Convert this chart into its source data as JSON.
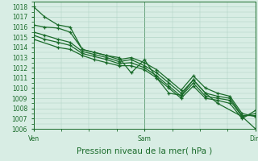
{
  "xlabel": "Pression niveau de la mer( hPa )",
  "bg_color": "#d8ede4",
  "grid_color": "#a8cfc0",
  "line_color": "#1a6b2a",
  "ylim": [
    1006,
    1018.5
  ],
  "yticks": [
    1006,
    1007,
    1008,
    1009,
    1010,
    1011,
    1012,
    1013,
    1014,
    1015,
    1016,
    1017,
    1018
  ],
  "xtick_labels": [
    "Ven",
    "Sam",
    "Dim"
  ],
  "xtick_positions": [
    0.0,
    1.0,
    2.0
  ],
  "xlim": [
    0.0,
    2.0
  ],
  "series": [
    {
      "x": [
        0.0,
        0.1,
        0.22,
        0.33,
        0.44,
        0.55,
        0.66,
        0.77,
        0.88,
        1.0,
        1.11,
        1.22,
        1.33,
        1.44,
        1.55,
        1.66,
        1.88,
        2.0
      ],
      "y": [
        1018.0,
        1017.0,
        1016.2,
        1016.0,
        1013.8,
        1013.5,
        1013.2,
        1013.0,
        1011.5,
        1012.8,
        1011.0,
        1009.5,
        1009.3,
        1010.8,
        1009.5,
        1008.5,
        1007.2,
        1006.0
      ]
    },
    {
      "x": [
        0.0,
        0.1,
        0.22,
        0.33,
        0.44,
        0.55,
        0.66,
        0.77,
        0.88,
        1.0,
        1.11,
        1.22,
        1.33,
        1.44,
        1.55,
        1.66,
        1.77,
        1.88,
        2.0
      ],
      "y": [
        1016.2,
        1016.0,
        1015.9,
        1015.5,
        1013.8,
        1013.5,
        1013.2,
        1012.8,
        1013.0,
        1012.5,
        1011.8,
        1010.8,
        1009.8,
        1011.2,
        1010.0,
        1009.5,
        1009.2,
        1007.5,
        1007.2
      ]
    },
    {
      "x": [
        0.0,
        0.1,
        0.22,
        0.33,
        0.44,
        0.55,
        0.66,
        0.77,
        0.88,
        1.0,
        1.11,
        1.22,
        1.33,
        1.44,
        1.55,
        1.66,
        1.77,
        1.88,
        2.0
      ],
      "y": [
        1015.5,
        1015.2,
        1014.8,
        1014.5,
        1013.6,
        1013.3,
        1013.0,
        1012.6,
        1012.8,
        1012.2,
        1011.5,
        1010.5,
        1009.5,
        1010.8,
        1009.5,
        1009.2,
        1009.0,
        1007.3,
        1007.3
      ]
    },
    {
      "x": [
        0.0,
        0.1,
        0.22,
        0.33,
        0.44,
        0.55,
        0.66,
        0.77,
        0.88,
        1.0,
        1.11,
        1.22,
        1.33,
        1.44,
        1.55,
        1.66,
        1.77,
        1.88,
        2.0
      ],
      "y": [
        1015.2,
        1014.8,
        1014.5,
        1014.2,
        1013.4,
        1013.1,
        1012.8,
        1012.4,
        1012.5,
        1012.0,
        1011.2,
        1010.2,
        1009.2,
        1010.5,
        1009.2,
        1009.0,
        1008.8,
        1007.2,
        1007.5
      ]
    },
    {
      "x": [
        0.0,
        0.22,
        0.33,
        0.44,
        0.55,
        0.66,
        0.77,
        0.88,
        1.0,
        1.11,
        1.22,
        1.33,
        1.44,
        1.55,
        1.66,
        1.77,
        1.88,
        2.0
      ],
      "y": [
        1014.8,
        1014.0,
        1013.8,
        1013.2,
        1012.8,
        1012.5,
        1012.2,
        1012.2,
        1011.8,
        1011.0,
        1010.0,
        1009.0,
        1010.2,
        1009.0,
        1008.8,
        1008.5,
        1007.0,
        1007.8
      ]
    }
  ],
  "marker": "+",
  "markersize": 3.5,
  "linewidth": 0.9,
  "fontsize_ticks": 5.5,
  "fontsize_xlabel": 7.5
}
